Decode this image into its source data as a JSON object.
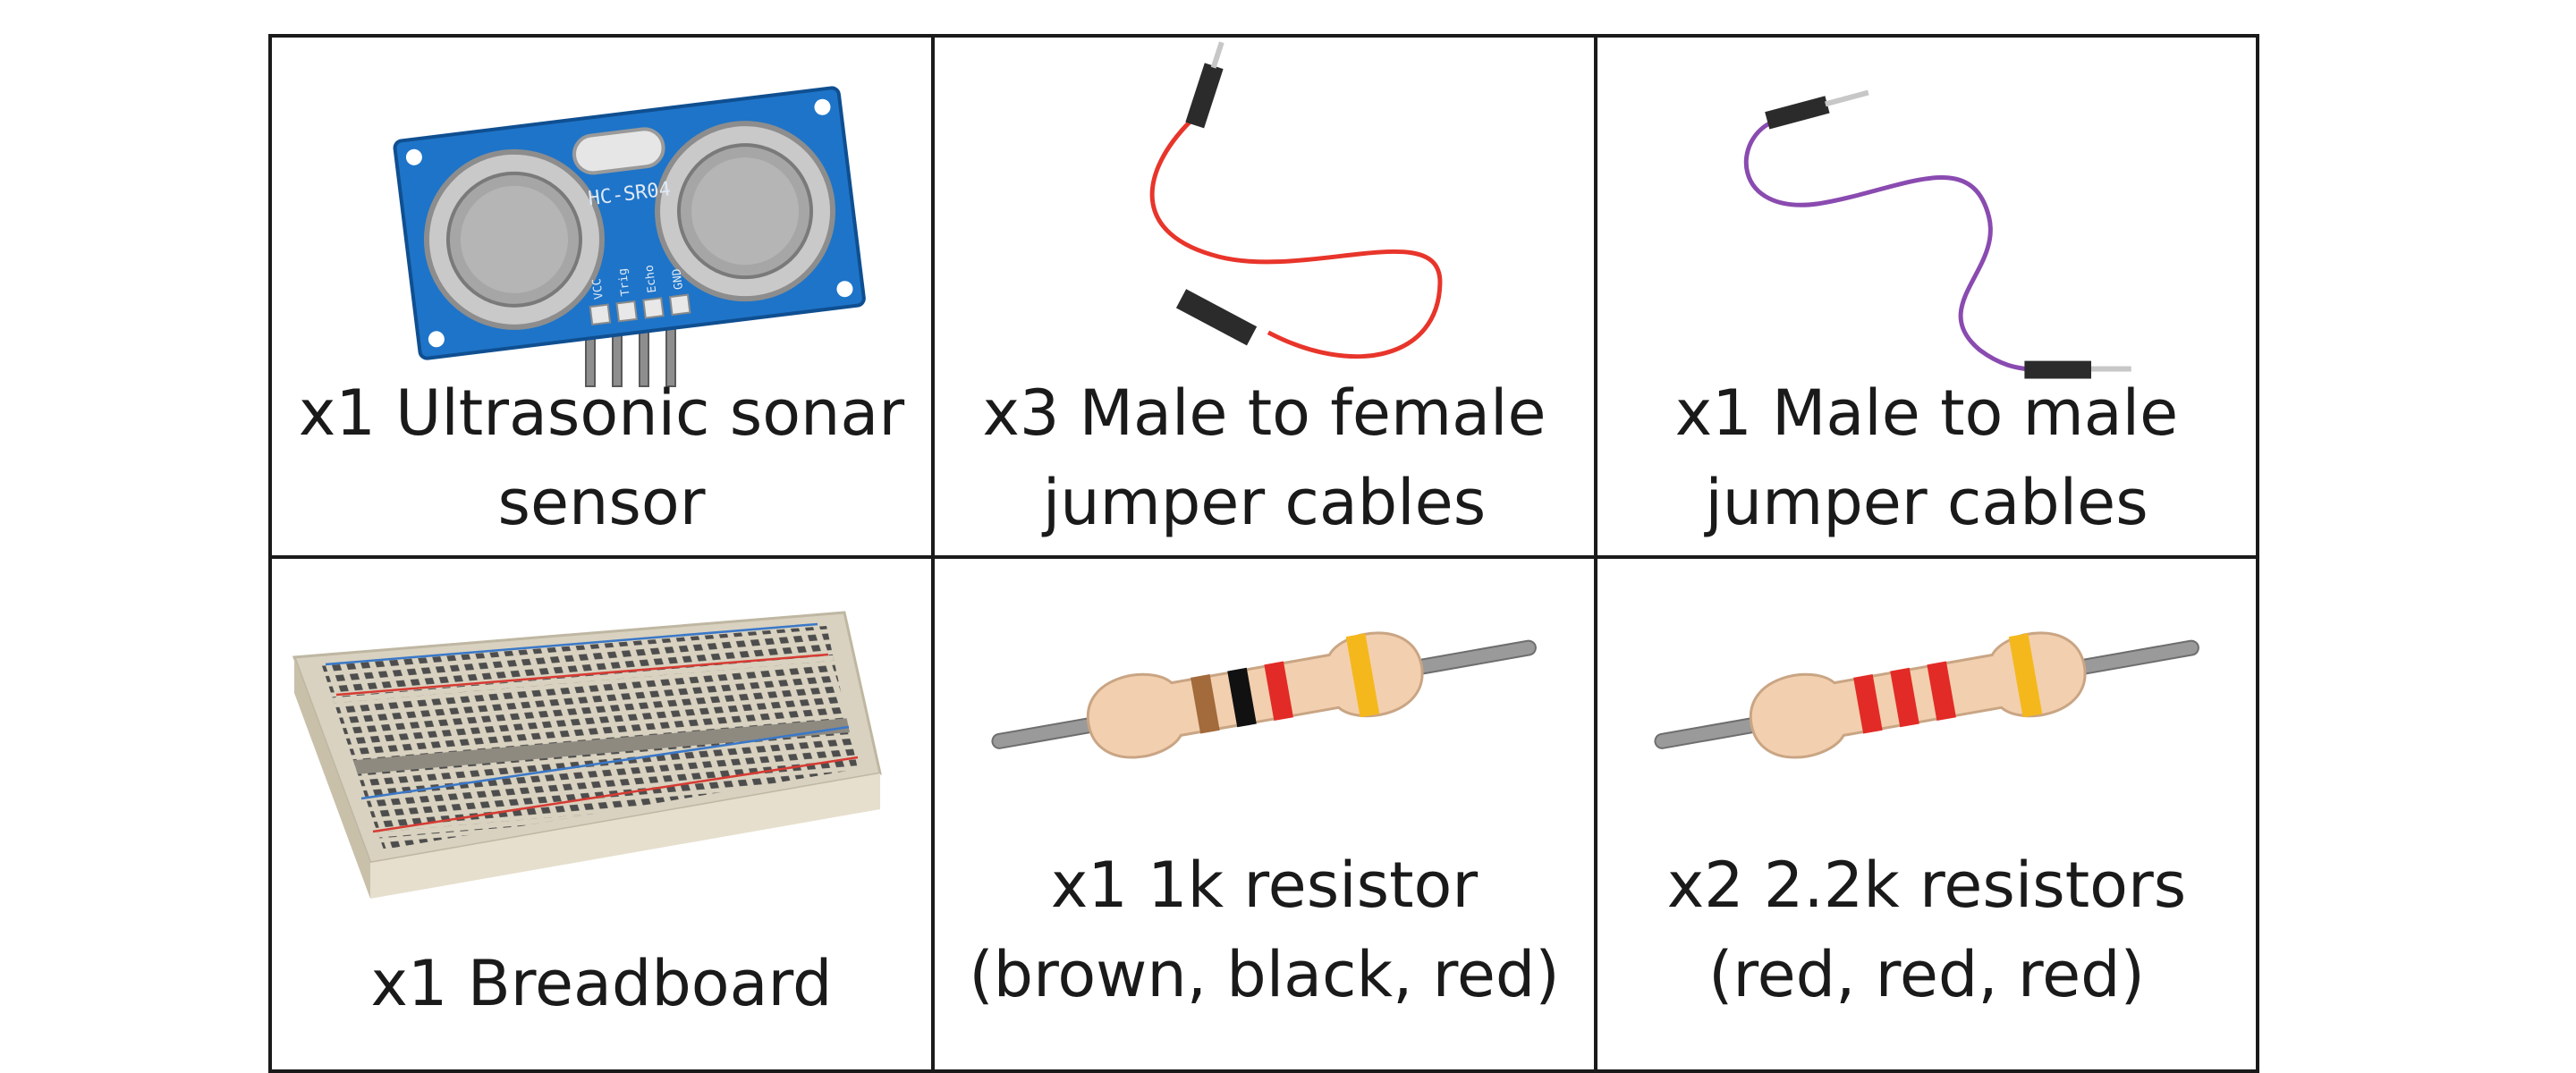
{
  "parts": [
    {
      "id": "ultrasonic-sensor",
      "lines": [
        "x1 Ultrasonic sonar",
        "sensor"
      ],
      "module_label": "HC-SR04",
      "pins": [
        "VCC",
        "Trig",
        "Echo",
        "GND"
      ],
      "board_color": "#1e74c8"
    },
    {
      "id": "male-female-cables",
      "lines": [
        "x3 Male to female",
        "jumper cables"
      ],
      "wire_color": "#e8352b"
    },
    {
      "id": "male-male-cables",
      "lines": [
        "x1 Male to male",
        "jumper cables"
      ],
      "wire_color": "#8a4bb0"
    },
    {
      "id": "breadboard",
      "lines": [
        "",
        "x1 Breadboard"
      ]
    },
    {
      "id": "resistor-1k",
      "lines": [
        "x1 1k resistor",
        "(brown, black, red)"
      ],
      "bands": [
        "#a36a3c",
        "#111111",
        "#e22b26",
        "#f5b81c"
      ]
    },
    {
      "id": "resistors-2-2k",
      "lines": [
        "x2 2.2k resistors",
        "(red, red, red)"
      ],
      "bands": [
        "#e22b26",
        "#e22b26",
        "#e22b26",
        "#f5b81c"
      ]
    }
  ]
}
